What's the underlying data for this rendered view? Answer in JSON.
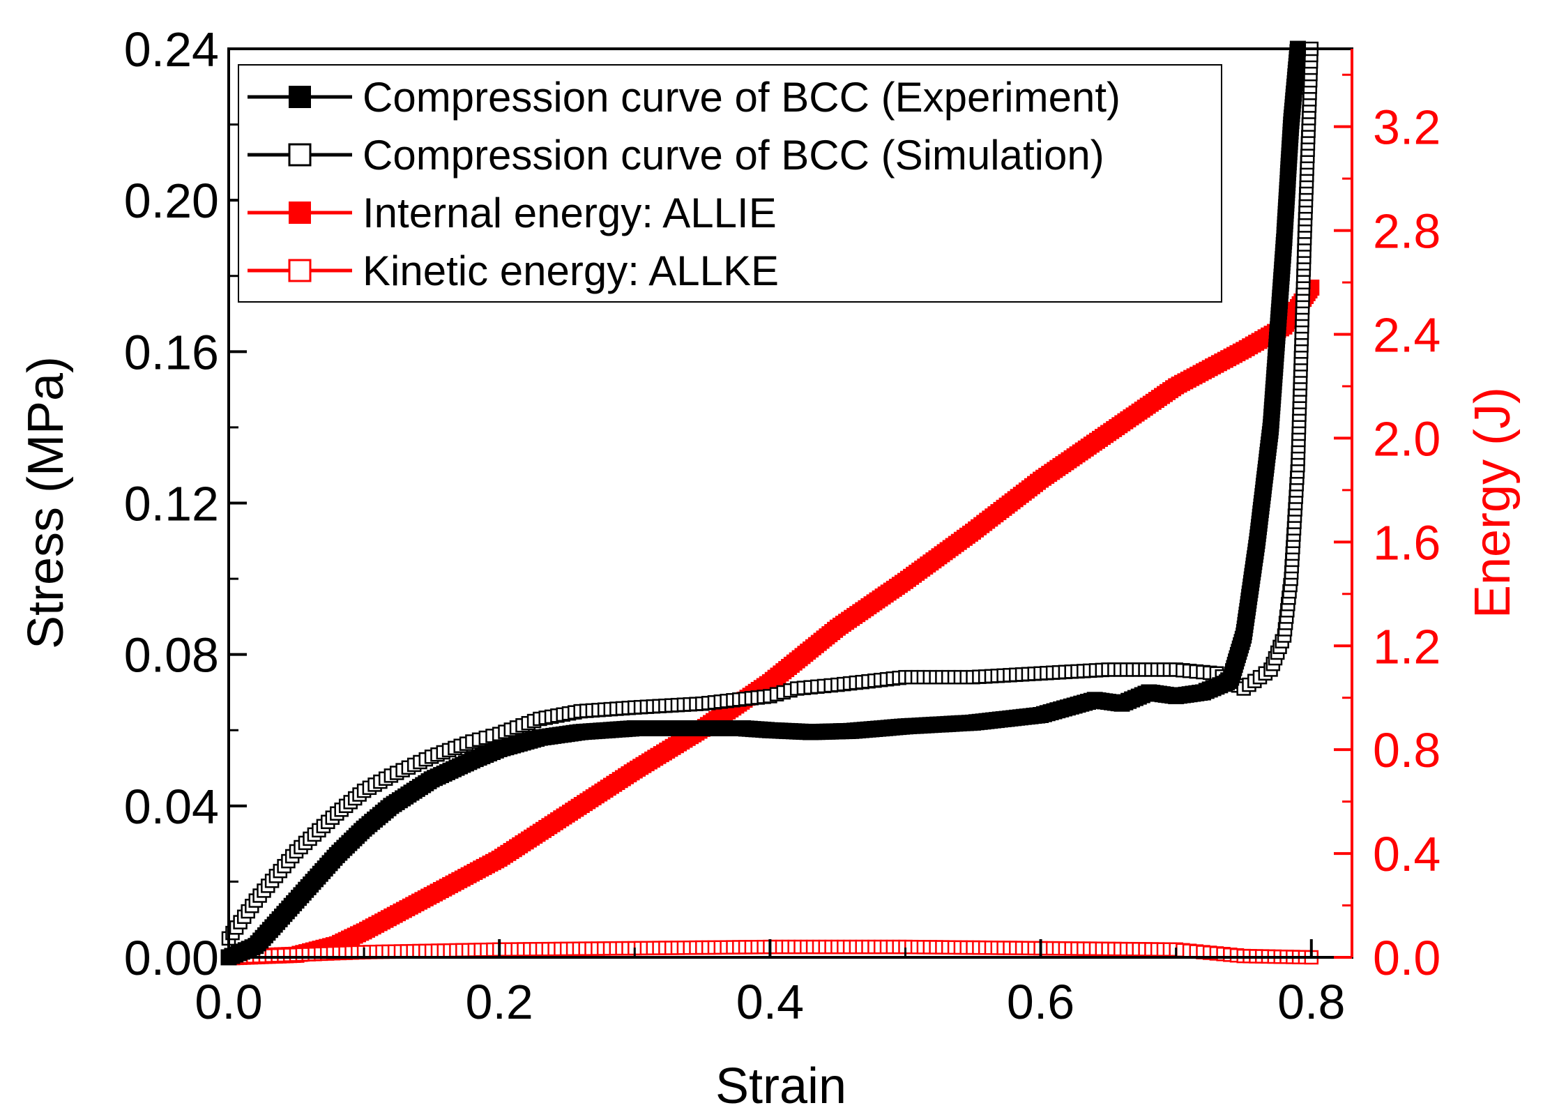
{
  "chart_data": {
    "type": "line",
    "title": "",
    "xlabel": "Strain",
    "ylabel_left": "Stress (MPa)",
    "ylabel_right": "Energy (J)",
    "xlim": [
      0.0,
      0.83
    ],
    "ylim_left": [
      0.0,
      0.24
    ],
    "ylim_right": [
      0.0,
      3.5
    ],
    "x_ticks": [
      "0.0",
      "0.2",
      "0.4",
      "0.6",
      "0.8"
    ],
    "y_left_ticks": [
      "0.00",
      "0.04",
      "0.08",
      "0.12",
      "0.16",
      "0.20",
      "0.24"
    ],
    "y_right_ticks": [
      "0.0",
      "0.4",
      "0.8",
      "1.2",
      "1.6",
      "2.0",
      "2.4",
      "2.8",
      "3.2"
    ],
    "grid": false,
    "legend_position": "top-left",
    "colors": {
      "black": "#000000",
      "red": "#ff0000"
    },
    "series": [
      {
        "name": "Compression curve of BCC (Experiment)",
        "axis": "left",
        "color": "#000000",
        "marker": "filled-square",
        "x": [
          0.0,
          0.02,
          0.05,
          0.08,
          0.1,
          0.12,
          0.15,
          0.18,
          0.2,
          0.23,
          0.26,
          0.3,
          0.35,
          0.38,
          0.4,
          0.43,
          0.46,
          0.5,
          0.55,
          0.6,
          0.62,
          0.64,
          0.66,
          0.68,
          0.7,
          0.72,
          0.74,
          0.75,
          0.76,
          0.77,
          0.775,
          0.78,
          0.785,
          0.79
        ],
        "y": [
          0.0,
          0.003,
          0.015,
          0.027,
          0.034,
          0.04,
          0.047,
          0.052,
          0.055,
          0.058,
          0.0595,
          0.0605,
          0.0605,
          0.0605,
          0.06,
          0.0595,
          0.0598,
          0.061,
          0.062,
          0.064,
          0.066,
          0.068,
          0.067,
          0.07,
          0.069,
          0.07,
          0.073,
          0.085,
          0.11,
          0.14,
          0.165,
          0.19,
          0.22,
          0.24
        ]
      },
      {
        "name": "Compression curve of BCC (Simulation)",
        "axis": "left",
        "color": "#000000",
        "marker": "open-square",
        "x": [
          0.0,
          0.02,
          0.05,
          0.08,
          0.1,
          0.12,
          0.15,
          0.18,
          0.2,
          0.23,
          0.26,
          0.3,
          0.35,
          0.4,
          0.42,
          0.45,
          0.5,
          0.55,
          0.6,
          0.65,
          0.7,
          0.73,
          0.75,
          0.77,
          0.78,
          0.785,
          0.79,
          0.795,
          0.8
        ],
        "y": [
          0.005,
          0.015,
          0.028,
          0.038,
          0.044,
          0.048,
          0.053,
          0.057,
          0.059,
          0.063,
          0.065,
          0.066,
          0.067,
          0.069,
          0.071,
          0.072,
          0.074,
          0.074,
          0.075,
          0.076,
          0.076,
          0.075,
          0.071,
          0.076,
          0.085,
          0.1,
          0.13,
          0.19,
          0.24
        ]
      },
      {
        "name": "Internal energy: ALLIE",
        "axis": "right",
        "color": "#ff0000",
        "marker": "filled-square",
        "x": [
          0.0,
          0.05,
          0.08,
          0.1,
          0.15,
          0.2,
          0.25,
          0.3,
          0.35,
          0.4,
          0.45,
          0.5,
          0.55,
          0.6,
          0.65,
          0.7,
          0.75,
          0.78,
          0.8
        ],
        "y": [
          0.0,
          0.01,
          0.05,
          0.1,
          0.24,
          0.38,
          0.55,
          0.72,
          0.88,
          1.06,
          1.27,
          1.45,
          1.64,
          1.84,
          2.02,
          2.2,
          2.34,
          2.43,
          2.58
        ]
      },
      {
        "name": "Kinetic energy: ALLKE",
        "axis": "right",
        "color": "#ff0000",
        "marker": "open-square",
        "x": [
          0.0,
          0.05,
          0.1,
          0.2,
          0.3,
          0.4,
          0.5,
          0.6,
          0.7,
          0.72,
          0.75,
          0.8
        ],
        "y": [
          0.0,
          0.01,
          0.02,
          0.03,
          0.035,
          0.04,
          0.04,
          0.035,
          0.03,
          0.02,
          0.005,
          0.0
        ]
      }
    ]
  }
}
